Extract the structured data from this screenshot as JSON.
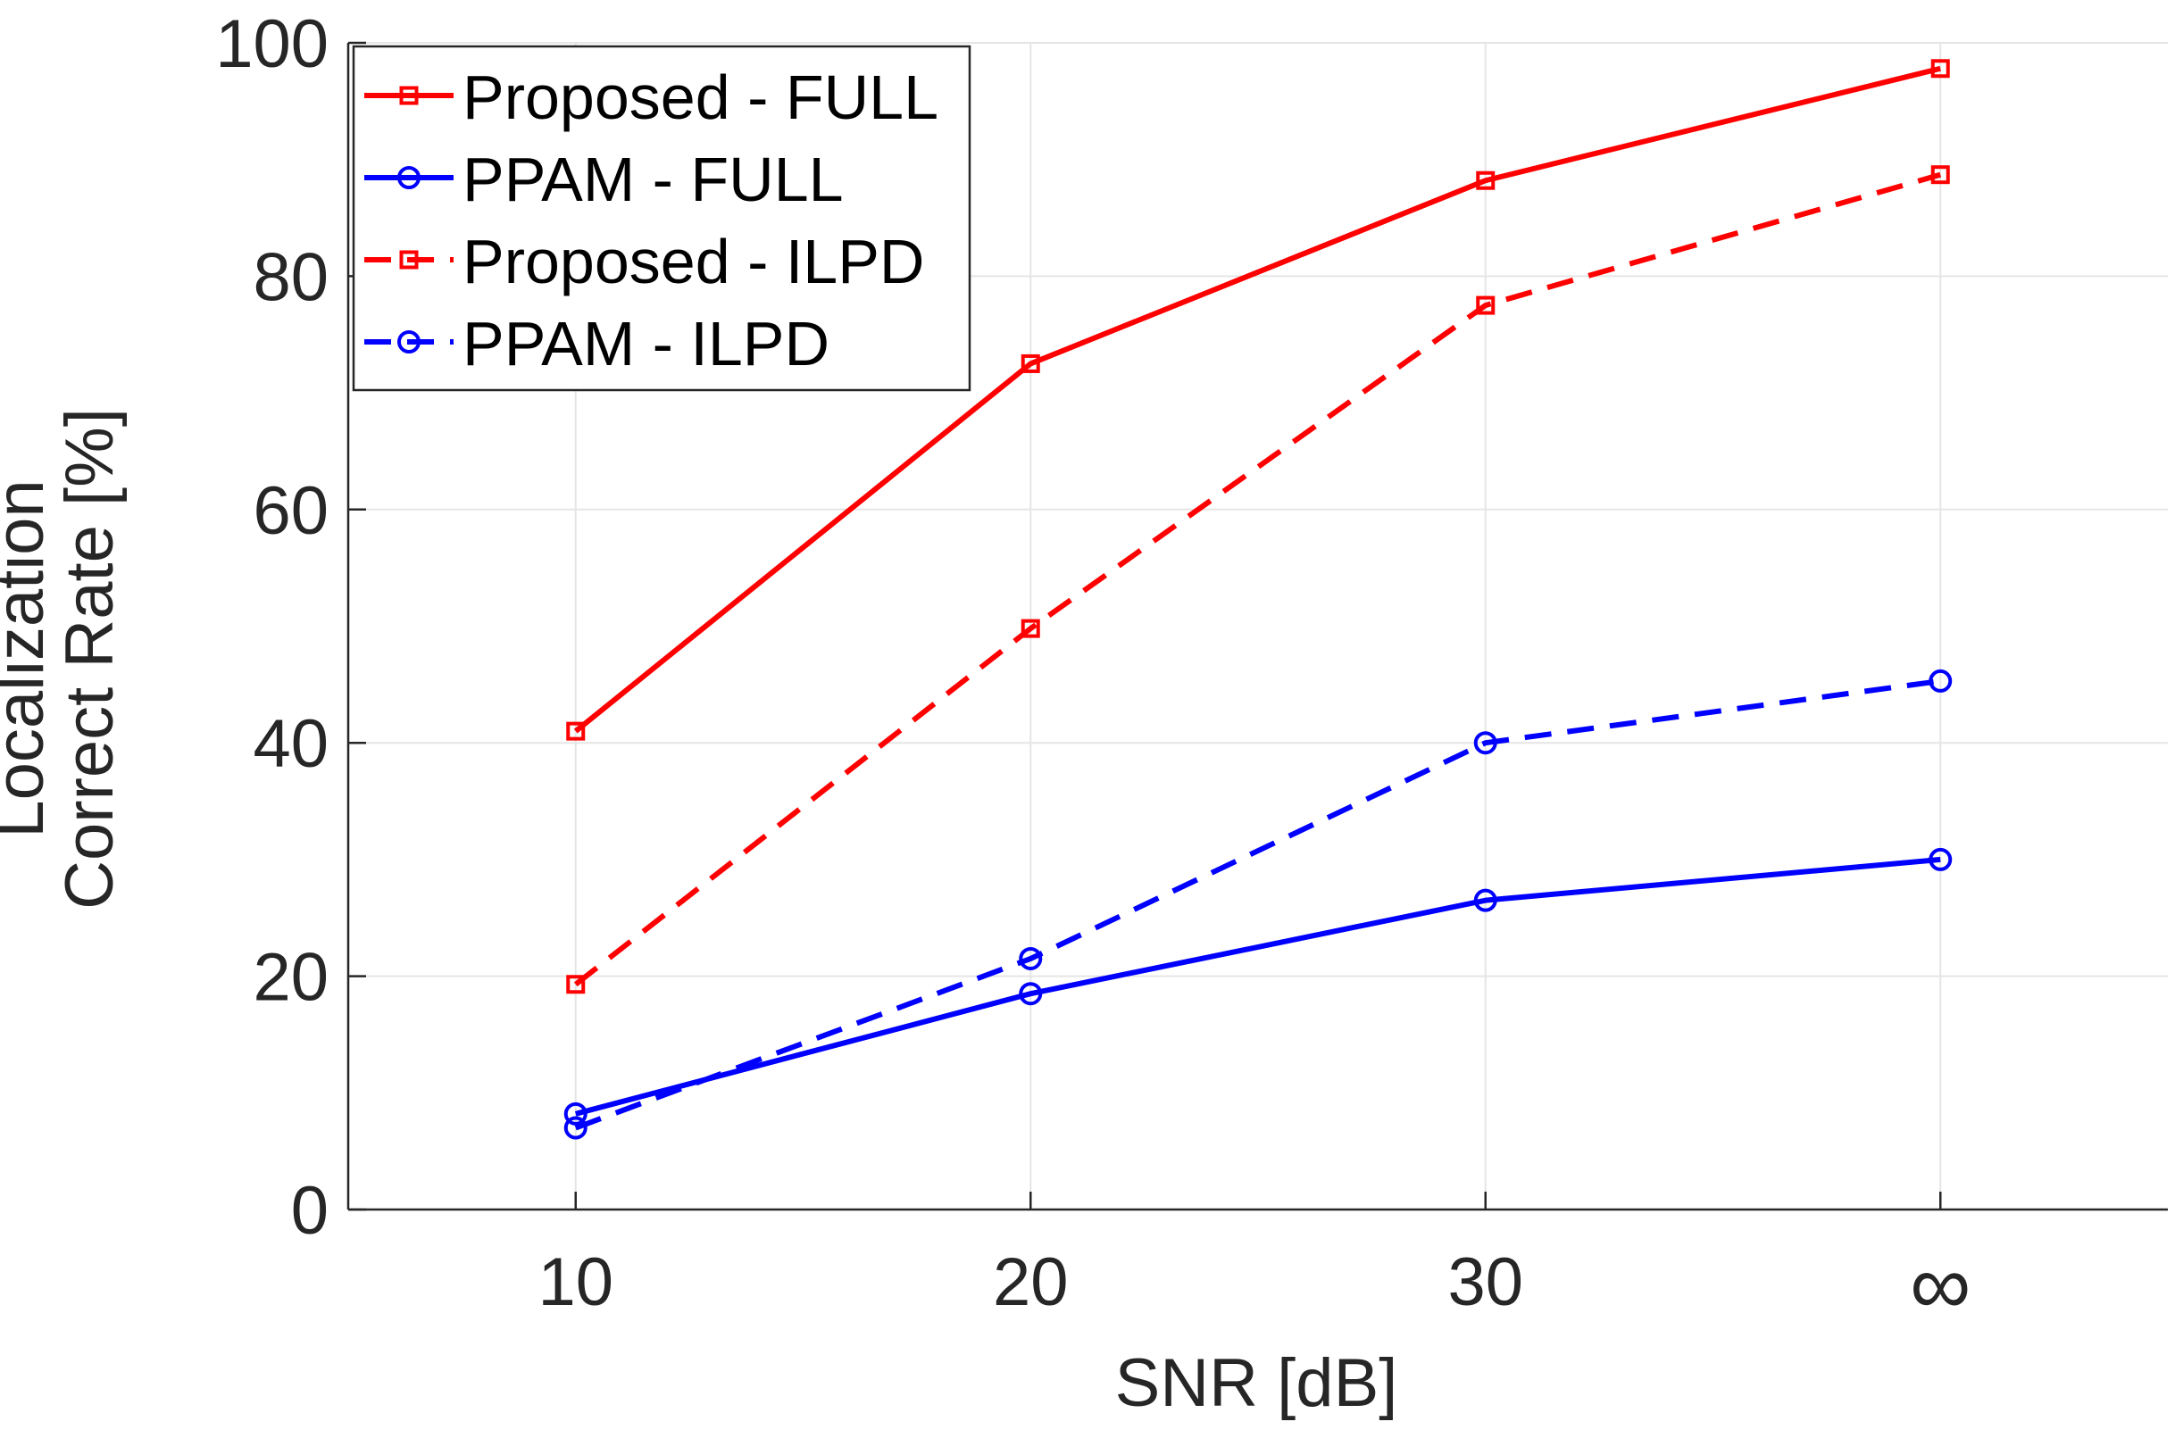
{
  "chart_data": {
    "type": "line",
    "title": "",
    "xlabel": "SNR [dB]",
    "ylabel_lines": [
      "Localization",
      "Correct Rate [%]"
    ],
    "categories": [
      "10",
      "20",
      "30",
      "∞"
    ],
    "x_positions": [
      10,
      20,
      30,
      40
    ],
    "xlim": [
      5,
      45
    ],
    "ylim": [
      0,
      100
    ],
    "yticks": [
      0,
      20,
      40,
      60,
      80,
      100
    ],
    "grid": true,
    "legend_position": "top-left",
    "colors": {
      "red": "#ff0000",
      "blue": "#0000ff",
      "axis": "#262626",
      "grid": "#e5e5e5"
    },
    "series": [
      {
        "name": "Proposed - FULL",
        "color": "#ff0000",
        "style": "solid",
        "marker": "square",
        "values": [
          41.0,
          72.5,
          88.2,
          97.8
        ]
      },
      {
        "name": "PPAM - FULL",
        "color": "#0000ff",
        "style": "solid",
        "marker": "circle",
        "values": [
          8.2,
          18.5,
          26.5,
          30.0
        ]
      },
      {
        "name": "Proposed - ILPD",
        "color": "#ff0000",
        "style": "dashed",
        "marker": "square",
        "values": [
          19.3,
          49.8,
          77.5,
          88.7
        ]
      },
      {
        "name": "PPAM - ILPD",
        "color": "#0000ff",
        "style": "dashed",
        "marker": "circle",
        "values": [
          7.0,
          21.5,
          40.0,
          45.3
        ]
      }
    ]
  }
}
